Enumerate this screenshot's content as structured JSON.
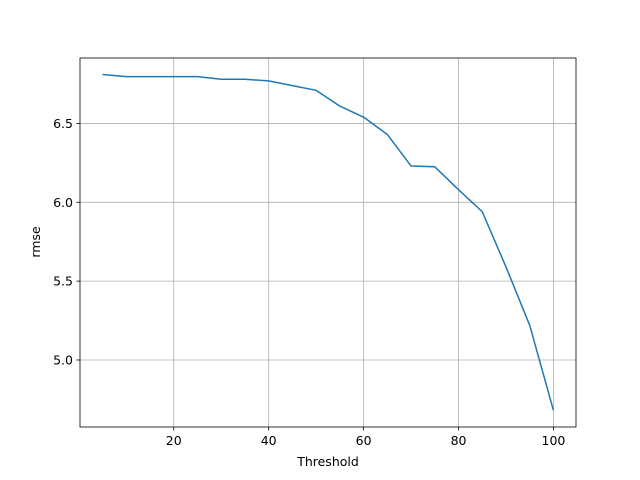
{
  "chart_data": {
    "type": "line",
    "x_label": "Threshold",
    "y_label": "rmse",
    "x": [
      5,
      10,
      15,
      20,
      25,
      30,
      35,
      40,
      45,
      50,
      55,
      60,
      65,
      70,
      75,
      80,
      85,
      90,
      95,
      100
    ],
    "series": [
      {
        "color": "#1f77b4",
        "values": [
          6.81,
          6.797,
          6.797,
          6.797,
          6.797,
          6.78,
          6.78,
          6.77,
          6.74,
          6.71,
          6.61,
          6.54,
          6.43,
          6.23,
          6.225,
          6.08,
          5.94,
          5.59,
          5.22,
          4.68
        ]
      }
    ],
    "xlim": [
      0.25,
      104.75
    ],
    "xticks": [
      20,
      40,
      60,
      80,
      100
    ],
    "ylim": [
      4.575,
      6.915
    ],
    "yticks": [
      {
        "value": 5.0,
        "label": "5.0"
      },
      5.5,
      {
        "value": 6.0,
        "label": "6.0"
      },
      6.5
    ],
    "grid": true
  }
}
